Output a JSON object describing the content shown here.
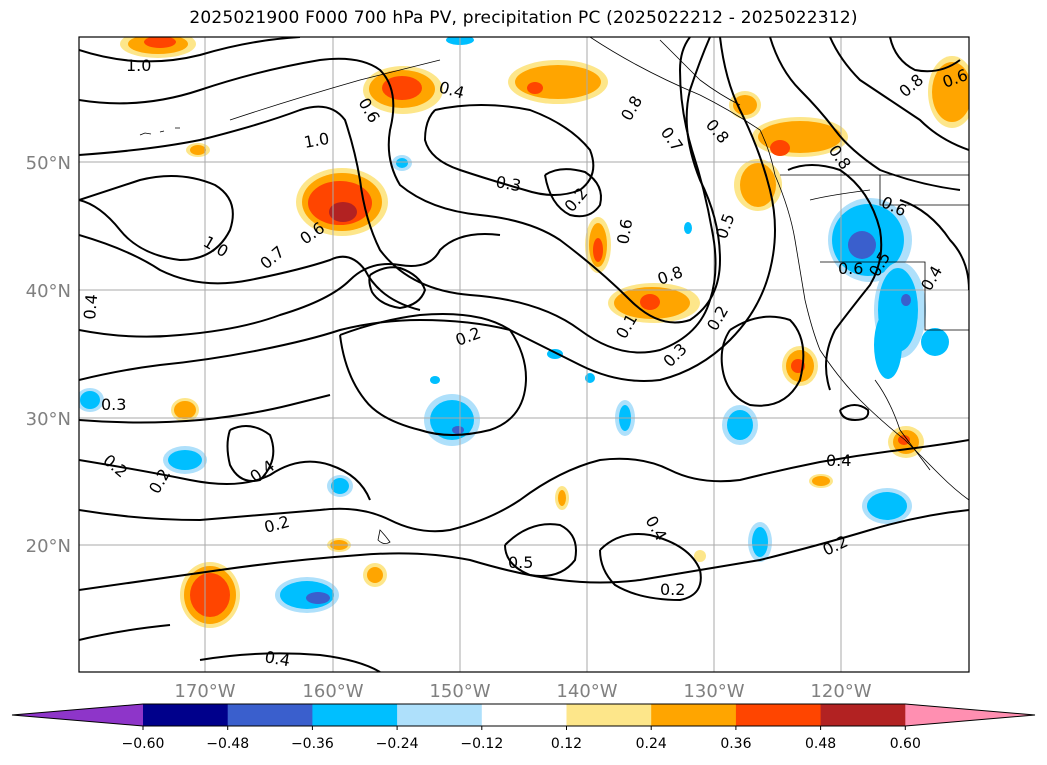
{
  "title": "2025021900 F000 700 hPa PV, precipitation PC (2025022212 - 2025022312)",
  "map": {
    "lat_ticks": [
      "50°N",
      "40°N",
      "30°N",
      "20°N"
    ],
    "lon_ticks": [
      "170°W",
      "160°W",
      "150°W",
      "140°W",
      "130°W",
      "120°W"
    ],
    "contour_labels": [
      "1.0",
      "0.8",
      "0.4",
      "0.8",
      "0.7",
      "0.6",
      "0.8",
      "0.8",
      "0.6",
      "0.3",
      "0.2",
      "1.0",
      "1.0",
      "0.7",
      "0.6",
      "0.6",
      "0.5",
      "0.8",
      "0.6",
      "0.5",
      "0.4",
      "0.4",
      "0.2",
      "0.1",
      "0.2",
      "0.3",
      "0.3",
      "0.2",
      "0.2",
      "0.4",
      "0.4",
      "0.2",
      "0.4",
      "0.5",
      "0.2",
      "0.2",
      "0.4",
      "0.6"
    ],
    "colors": {
      "pos_0.12": "#fde68a",
      "pos_0.24": "#ffa500",
      "pos_0.36": "#ff4500",
      "pos_0.48": "#b22222",
      "pos_0.60": "#ff8fb1",
      "neg_0.12": "#aee0fb",
      "neg_0.24": "#00bfff",
      "neg_0.36": "#3a5fcd",
      "neg_0.48": "#00008b",
      "neg_0.60": "#8e35c9"
    }
  },
  "colorbar": {
    "ticks": [
      "−0.60",
      "−0.48",
      "−0.36",
      "−0.24",
      "−0.12",
      "0.12",
      "0.24",
      "0.36",
      "0.48",
      "0.60"
    ],
    "segments": [
      "#8e35c9",
      "#00008b",
      "#3a5fcd",
      "#00bfff",
      "#aee0fb",
      "#ffffff",
      "#fde68a",
      "#ffa500",
      "#ff4500",
      "#b22222",
      "#ff8fb1"
    ]
  }
}
